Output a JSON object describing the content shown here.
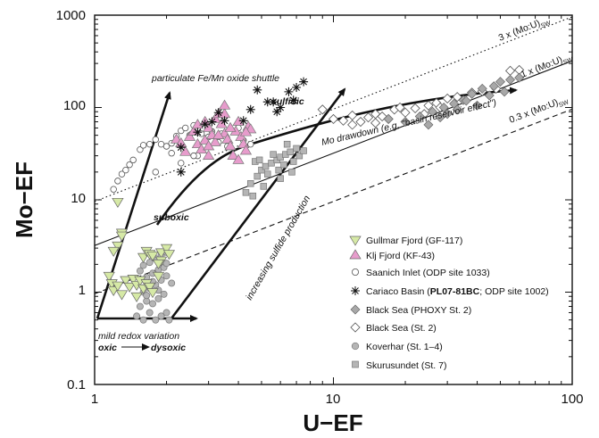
{
  "chart_data": {
    "type": "scatter",
    "xlabel": "U−EF",
    "ylabel": "Mo−EF",
    "xscale": "log",
    "yscale": "log",
    "xlim": [
      1,
      100
    ],
    "ylim": [
      0.1,
      1000
    ],
    "xticks": [
      "1",
      "10",
      "100"
    ],
    "yticks": [
      "0.1",
      "1",
      "10",
      "100",
      "1000"
    ],
    "grid": false,
    "legend_position": "bottom-right",
    "colors": {
      "gullmar": "#d6e9a6",
      "koljo": "#e79ccc",
      "grey": "#b5b5b5",
      "darkgrey": "#a8a8a8",
      "ink": "#111111"
    },
    "reference_lines": [
      {
        "label": "3 x (Mo:U)",
        "sub": "SW",
        "style": "dotted",
        "points": [
          [
            1,
            9.6
          ],
          [
            100,
            960
          ]
        ]
      },
      {
        "label": "1 x (Mo:U)",
        "sub": "SW",
        "style": "solid",
        "points": [
          [
            1,
            3.2
          ],
          [
            100,
            320
          ]
        ]
      },
      {
        "label": "0.3 x (Mo:U)",
        "sub": "SW",
        "style": "dashed",
        "points": [
          [
            1,
            0.96
          ],
          [
            100,
            96
          ]
        ]
      }
    ],
    "annotations": {
      "shuttle": "particulate Fe/Mn oxide shuttle",
      "sulfidic": "sulfidic",
      "drawdown": "Mo drawdown (e.g, \"basin reservoir effect\")",
      "suboxic": "suboxic",
      "sulfide_production": "increasing sulfide production",
      "mild_redox": "mild redox variation",
      "oxic": "oxic",
      "dysoxic": "dysoxic"
    },
    "series": [
      {
        "name": "Gullmar Fjord (GF-117)",
        "marker": "triangle-down",
        "color": "#d6e9a6",
        "points": [
          [
            1.25,
            9.5
          ],
          [
            1.3,
            4.4
          ],
          [
            1.3,
            4.1
          ],
          [
            1.25,
            3.2
          ],
          [
            1.2,
            2.8
          ],
          [
            1.15,
            1.5
          ],
          [
            1.18,
            1.25
          ],
          [
            1.2,
            1.05
          ],
          [
            1.25,
            1.18
          ],
          [
            1.3,
            0.95
          ],
          [
            1.35,
            1.35
          ],
          [
            1.4,
            1.15
          ],
          [
            1.45,
            1.4
          ],
          [
            1.5,
            1.2
          ],
          [
            1.55,
            1.35
          ],
          [
            1.6,
            1.1
          ],
          [
            1.65,
            1.25
          ],
          [
            1.7,
            1.15
          ],
          [
            1.75,
            1.0
          ],
          [
            1.5,
            0.9
          ],
          [
            1.85,
            1.5
          ],
          [
            1.6,
            2.4
          ],
          [
            1.65,
            2.8
          ],
          [
            1.7,
            2.6
          ],
          [
            1.75,
            2.5
          ],
          [
            1.9,
            2.7
          ],
          [
            2.0,
            3.0
          ],
          [
            2.05,
            2.6
          ],
          [
            1.9,
            2.2
          ],
          [
            1.85,
            2.05
          ]
        ]
      },
      {
        "name": "Klj Fjord (KF-43)",
        "marker": "triangle-up",
        "color": "#e79ccc",
        "points": [
          [
            2.2,
            45
          ],
          [
            2.3,
            41
          ],
          [
            2.5,
            48
          ],
          [
            2.6,
            55
          ],
          [
            2.7,
            40
          ],
          [
            2.8,
            35
          ],
          [
            2.9,
            44
          ],
          [
            3.0,
            60
          ],
          [
            3.1,
            50
          ],
          [
            3.2,
            75
          ],
          [
            3.3,
            85
          ],
          [
            3.4,
            66
          ],
          [
            3.5,
            52
          ],
          [
            3.6,
            45
          ],
          [
            3.7,
            38
          ],
          [
            3.8,
            30
          ],
          [
            3.9,
            55
          ],
          [
            4.0,
            70
          ],
          [
            4.1,
            48
          ],
          [
            4.2,
            40
          ],
          [
            4.3,
            34
          ],
          [
            4.4,
            62
          ],
          [
            4.5,
            58
          ],
          [
            2.7,
            65
          ],
          [
            3.2,
            42
          ],
          [
            3.5,
            85
          ],
          [
            3.7,
            60
          ],
          [
            4.3,
            54
          ],
          [
            2.4,
            33
          ],
          [
            3.0,
            30
          ],
          [
            4.0,
            27
          ],
          [
            3.0,
            38
          ],
          [
            3.3,
            50
          ],
          [
            2.9,
            70
          ],
          [
            3.5,
            105
          ]
        ]
      },
      {
        "name": "Saanich Inlet (ODP site 1033)",
        "marker": "circle-open",
        "color": "#ffffff",
        "points": [
          [
            1.2,
            13
          ],
          [
            1.25,
            16
          ],
          [
            1.3,
            19
          ],
          [
            1.35,
            21
          ],
          [
            1.4,
            24
          ],
          [
            1.45,
            27
          ],
          [
            1.55,
            35
          ],
          [
            1.6,
            39
          ],
          [
            1.7,
            40
          ],
          [
            1.8,
            45
          ],
          [
            1.9,
            40
          ],
          [
            2.0,
            38
          ],
          [
            2.1,
            41
          ],
          [
            2.2,
            49
          ],
          [
            2.3,
            56
          ],
          [
            2.4,
            60
          ],
          [
            2.5,
            50
          ],
          [
            2.6,
            64
          ],
          [
            2.7,
            58
          ],
          [
            2.8,
            52
          ],
          [
            3.0,
            48
          ],
          [
            3.1,
            55
          ],
          [
            3.3,
            42
          ],
          [
            3.4,
            52
          ],
          [
            3.6,
            38
          ],
          [
            3.8,
            30
          ],
          [
            4.0,
            60
          ],
          [
            4.2,
            44
          ],
          [
            4.5,
            40
          ],
          [
            1.8,
            20
          ],
          [
            2.3,
            25
          ],
          [
            2.7,
            30
          ],
          [
            2.1,
            32
          ],
          [
            2.6,
            30
          ]
        ]
      },
      {
        "name": "Cariaco Basin (PL07-81BC; ODP site 1002)",
        "marker": "asterisk",
        "color": "#111111",
        "points": [
          [
            2.3,
            37
          ],
          [
            2.3,
            20
          ],
          [
            3.3,
            88
          ],
          [
            3.1,
            70
          ],
          [
            2.9,
            66
          ],
          [
            2.7,
            54
          ],
          [
            3.5,
            72
          ],
          [
            4.8,
            155
          ],
          [
            5.3,
            115
          ],
          [
            5.6,
            115
          ],
          [
            6.0,
            100
          ],
          [
            6.5,
            148
          ],
          [
            7.0,
            165
          ],
          [
            7.5,
            190
          ],
          [
            5.8,
            90
          ],
          [
            6.8,
            120
          ],
          [
            4.2,
            72
          ],
          [
            4.5,
            95
          ]
        ]
      },
      {
        "name": "Black Sea (PHOXY St. 2)",
        "marker": "diamond-filled",
        "color": "#a8a8a8",
        "points": [
          [
            17,
            75
          ],
          [
            20,
            70
          ],
          [
            23,
            80
          ],
          [
            26,
            90
          ],
          [
            29,
            100
          ],
          [
            32,
            110
          ],
          [
            35,
            120
          ],
          [
            38,
            140
          ],
          [
            42,
            160
          ],
          [
            47,
            170
          ],
          [
            50,
            190
          ],
          [
            55,
            200
          ],
          [
            60,
            210
          ],
          [
            30,
            85
          ],
          [
            40,
            105
          ],
          [
            25,
            65
          ],
          [
            33,
            95
          ],
          [
            45,
            135
          ],
          [
            52,
            148
          ],
          [
            28,
            78
          ],
          [
            36,
            118
          ]
        ]
      },
      {
        "name": "Black Sea (St. 2)",
        "marker": "diamond-open",
        "color": "#ffffff",
        "points": [
          [
            9,
            95
          ],
          [
            10,
            75
          ],
          [
            11,
            72
          ],
          [
            12,
            65
          ],
          [
            13,
            70
          ],
          [
            14,
            78
          ],
          [
            15,
            85
          ],
          [
            16,
            80
          ],
          [
            18,
            95
          ],
          [
            20,
            88
          ],
          [
            22,
            98
          ],
          [
            25,
            105
          ],
          [
            27,
            112
          ],
          [
            30,
            125
          ],
          [
            33,
            130
          ],
          [
            38,
            145
          ],
          [
            42,
            150
          ],
          [
            48,
            160
          ],
          [
            55,
            250
          ],
          [
            60,
            255
          ],
          [
            15,
            68
          ],
          [
            17,
            75
          ],
          [
            24,
            85
          ],
          [
            12,
            82
          ],
          [
            19,
            100
          ],
          [
            28,
            100
          ]
        ]
      },
      {
        "name": "Koverhar (St. 1–4)",
        "marker": "circle-filled",
        "color": "#b5b5b5",
        "points": [
          [
            1.5,
            0.55
          ],
          [
            1.6,
            0.5
          ],
          [
            1.7,
            0.6
          ],
          [
            1.8,
            0.5
          ],
          [
            1.9,
            0.55
          ],
          [
            2.0,
            0.6
          ],
          [
            2.05,
            0.5
          ],
          [
            1.55,
            0.7
          ],
          [
            1.65,
            0.8
          ],
          [
            1.75,
            0.75
          ],
          [
            1.85,
            0.85
          ],
          [
            1.95,
            0.95
          ],
          [
            1.6,
            1.0
          ],
          [
            1.7,
            1.1
          ],
          [
            1.8,
            1.2
          ],
          [
            1.9,
            1.35
          ],
          [
            2.0,
            1.5
          ],
          [
            1.65,
            1.45
          ],
          [
            1.75,
            1.6
          ],
          [
            1.85,
            1.75
          ],
          [
            1.95,
            1.85
          ],
          [
            1.55,
            1.7
          ],
          [
            1.6,
            1.95
          ],
          [
            1.7,
            2.1
          ],
          [
            1.8,
            2.3
          ],
          [
            1.9,
            2.5
          ],
          [
            2.0,
            2.7
          ],
          [
            1.75,
            1.3
          ],
          [
            1.85,
            1.05
          ],
          [
            1.65,
            0.92
          ],
          [
            2.1,
            1.25
          ],
          [
            2.0,
            2.05
          ]
        ]
      },
      {
        "name": "Skurusundet (St. 7)",
        "marker": "square",
        "color": "#b5b5b5",
        "points": [
          [
            4.3,
            12
          ],
          [
            4.5,
            15
          ],
          [
            4.8,
            18
          ],
          [
            5.0,
            21
          ],
          [
            5.2,
            23
          ],
          [
            5.5,
            25
          ],
          [
            5.8,
            27
          ],
          [
            6.0,
            29
          ],
          [
            6.3,
            31
          ],
          [
            6.6,
            33
          ],
          [
            7.0,
            36
          ],
          [
            4.7,
            26
          ],
          [
            5.3,
            19
          ],
          [
            5.9,
            21
          ],
          [
            6.2,
            24
          ],
          [
            6.8,
            26
          ],
          [
            7.2,
            30
          ],
          [
            7.5,
            34
          ],
          [
            6.4,
            40
          ],
          [
            5.6,
            31
          ],
          [
            4.9,
            27
          ],
          [
            5.1,
            14
          ],
          [
            4.6,
            11
          ],
          [
            6.0,
            17
          ],
          [
            6.7,
            20
          ]
        ]
      }
    ]
  }
}
